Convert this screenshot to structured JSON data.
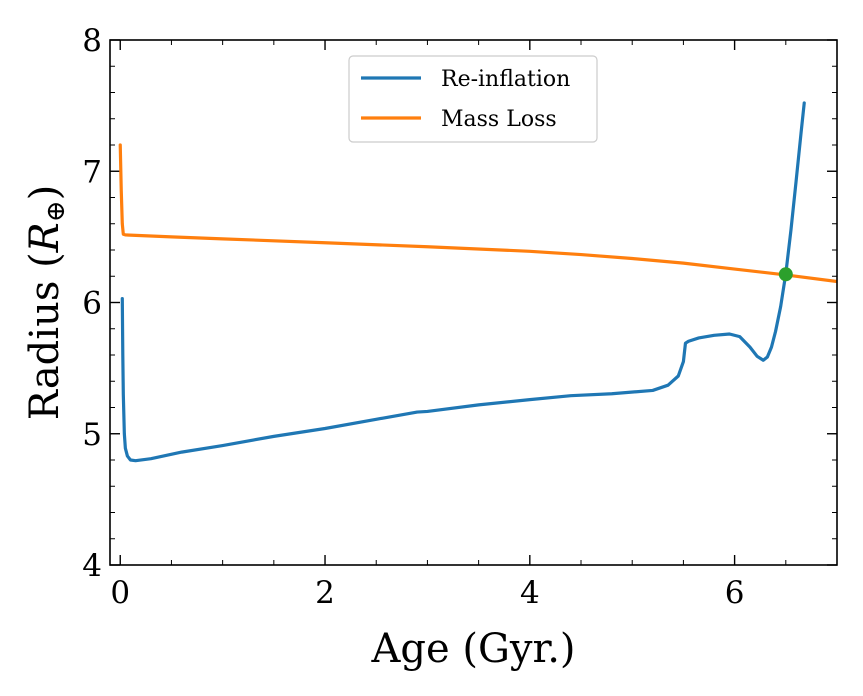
{
  "chart_data": {
    "type": "line",
    "title": "",
    "xlabel": "Age (Gyr.)",
    "ylabel_prefix": "Radius (",
    "ylabel_symbol": "R",
    "ylabel_subscript": "⊕",
    "ylabel_suffix": ")",
    "xlim": [
      -0.1,
      7.0
    ],
    "ylim": [
      4.0,
      8.0
    ],
    "xticks": [
      0,
      2,
      4,
      6
    ],
    "yticks": [
      4,
      5,
      6,
      7,
      8
    ],
    "xtick_labels": [
      "0",
      "2",
      "4",
      "6"
    ],
    "ytick_labels": [
      "4",
      "5",
      "6",
      "7",
      "8"
    ],
    "x_minor_step": 0.5,
    "y_minor_step": 0.2,
    "grid": false,
    "legend_position": "top-center",
    "series": [
      {
        "name": "Re-inflation",
        "color": "#1f77b4",
        "x": [
          0.02,
          0.025,
          0.03,
          0.04,
          0.05,
          0.07,
          0.1,
          0.15,
          0.3,
          0.6,
          1.0,
          1.5,
          2.0,
          2.5,
          2.9,
          3.0,
          3.5,
          4.0,
          4.4,
          4.8,
          5.2,
          5.35,
          5.45,
          5.5,
          5.52,
          5.55,
          5.65,
          5.8,
          5.95,
          6.05,
          6.15,
          6.22,
          6.28,
          6.32,
          6.36,
          6.4,
          6.45,
          6.5,
          6.55,
          6.6,
          6.65,
          6.68
        ],
        "y": [
          6.03,
          5.6,
          5.3,
          5.0,
          4.89,
          4.83,
          4.8,
          4.795,
          4.81,
          4.86,
          4.91,
          4.98,
          5.04,
          5.11,
          5.165,
          5.17,
          5.22,
          5.26,
          5.29,
          5.305,
          5.33,
          5.37,
          5.44,
          5.55,
          5.69,
          5.705,
          5.73,
          5.75,
          5.76,
          5.74,
          5.66,
          5.59,
          5.56,
          5.585,
          5.66,
          5.78,
          5.97,
          6.22,
          6.55,
          6.92,
          7.3,
          7.52
        ]
      },
      {
        "name": "Mass Loss",
        "color": "#ff7f0e",
        "x": [
          0.0,
          0.01,
          0.02,
          0.03,
          0.05,
          0.5,
          1.0,
          2.0,
          3.0,
          4.0,
          4.5,
          5.0,
          5.5,
          6.0,
          6.5,
          7.0
        ],
        "y": [
          7.2,
          6.85,
          6.6,
          6.52,
          6.515,
          6.5,
          6.485,
          6.455,
          6.425,
          6.39,
          6.365,
          6.335,
          6.3,
          6.255,
          6.21,
          6.16
        ]
      }
    ],
    "marker": {
      "label": "intersection",
      "x": 6.5,
      "y": 6.215,
      "color": "#2ca02c"
    }
  }
}
